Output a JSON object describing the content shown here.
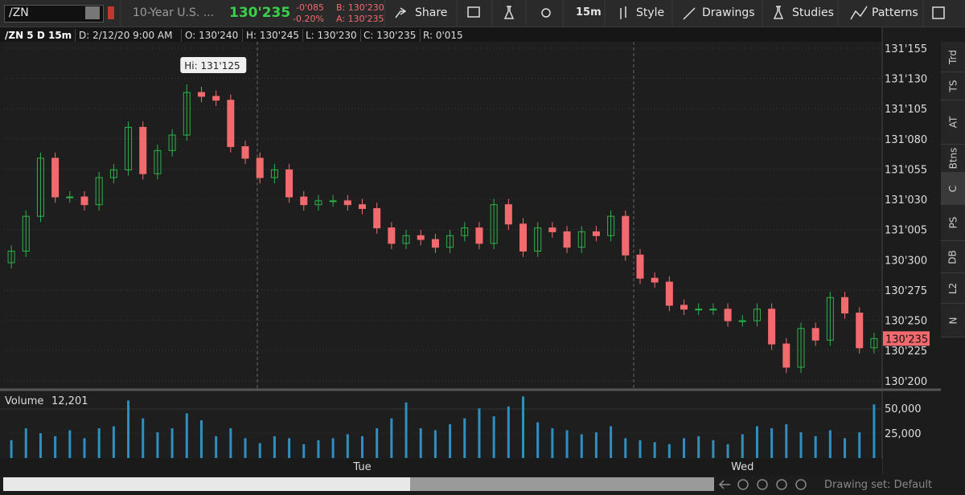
{
  "toolbar": {
    "symbol": "/ZN",
    "description": "10-Year U.S. ...",
    "last": "130'235",
    "net_change": "-0'085",
    "percent_change": "-0.20%",
    "bid": "B: 130'230",
    "ask": "A: 130'235",
    "share": "Share",
    "timeframe": "15m",
    "style": "Style",
    "drawings": "Drawings",
    "studies": "Studies",
    "patterns": "Patterns"
  },
  "info_bar": {
    "title": "/ZN 5 D 15m",
    "date": "D: 2/12/20 9:00 AM",
    "open": "O: 130'240",
    "high": "H: 130'245",
    "low": "L: 130'230",
    "close": "C: 130'235",
    "range": "R: 0'015"
  },
  "side_tabs": [
    "Trd",
    "TS",
    "AT",
    "Btns",
    "C",
    "PS",
    "DB",
    "L2",
    "N"
  ],
  "footer": {
    "drawing_set": "Drawing set: Default"
  },
  "chart_data": {
    "type": "candlestick",
    "categories": [
      null,
      null,
      null,
      null,
      null,
      null,
      null,
      null,
      null,
      null,
      null,
      null,
      null,
      null,
      null,
      null,
      null,
      null,
      null,
      null,
      null,
      null,
      null,
      null,
      "Tue",
      null,
      null,
      null,
      null,
      null,
      null,
      null,
      null,
      null,
      null,
      null,
      null,
      null,
      null,
      null,
      null,
      null,
      null,
      null,
      null,
      null,
      null,
      null,
      null,
      null,
      "Wed",
      null,
      null,
      null,
      null,
      null,
      null,
      null,
      null,
      null
    ],
    "open": [
      130.93,
      130.96,
      131.05,
      131.2,
      131.1,
      131.1,
      131.08,
      131.15,
      131.17,
      131.28,
      131.16,
      131.22,
      131.26,
      131.37,
      131.36,
      131.35,
      131.23,
      131.2,
      131.15,
      131.17,
      131.1,
      131.08,
      131.09,
      131.09,
      131.08,
      131.07,
      131.02,
      130.98,
      131,
      130.99,
      130.97,
      131,
      131.02,
      130.98,
      131.08,
      131.03,
      130.96,
      131.02,
      131.01,
      130.97,
      131.01,
      131,
      131.05,
      130.95,
      130.89,
      130.88,
      130.82,
      130.81,
      130.81,
      130.81,
      130.78,
      130.78,
      130.81,
      130.72,
      130.66,
      130.76,
      130.73,
      130.84,
      130.8,
      130.71
    ],
    "high": [
      130.975,
      131.065,
      131.215,
      131.215,
      131.115,
      131.115,
      131.165,
      131.185,
      131.295,
      131.295,
      131.235,
      131.275,
      131.391,
      131.385,
      131.375,
      131.365,
      131.245,
      131.215,
      131.185,
      131.185,
      131.115,
      131.105,
      131.105,
      131.105,
      131.095,
      131.085,
      131.035,
      131.015,
      131.015,
      131.005,
      131.015,
      131.035,
      131.035,
      131.095,
      131.095,
      131.045,
      131.035,
      131.035,
      131.025,
      131.025,
      131.025,
      131.065,
      131.065,
      130.965,
      130.905,
      130.895,
      130.835,
      130.825,
      130.825,
      130.825,
      130.795,
      130.825,
      130.825,
      130.735,
      130.775,
      130.775,
      130.855,
      130.855,
      130.815,
      130.749
    ],
    "low": [
      130.915,
      130.945,
      131.035,
      131.085,
      131.085,
      131.065,
      131.065,
      131.135,
      131.155,
      131.145,
      131.145,
      131.205,
      131.245,
      131.345,
      131.335,
      131.215,
      131.185,
      131.135,
      131.135,
      131.085,
      131.065,
      131.065,
      131.075,
      131.065,
      131.055,
      131.005,
      130.965,
      130.965,
      130.975,
      130.955,
      130.955,
      130.985,
      130.965,
      130.965,
      131.015,
      130.945,
      130.945,
      130.995,
      130.955,
      130.955,
      130.985,
      130.985,
      130.935,
      130.875,
      130.865,
      130.805,
      130.795,
      130.795,
      130.795,
      130.765,
      130.765,
      130.765,
      130.705,
      130.645,
      130.645,
      130.715,
      130.715,
      130.785,
      130.695,
      130.695
    ],
    "close": [
      130.96,
      131.05,
      131.2,
      131.1,
      131.1,
      131.08,
      131.15,
      131.17,
      131.28,
      131.16,
      131.22,
      131.26,
      131.37,
      131.36,
      131.35,
      131.23,
      131.2,
      131.15,
      131.17,
      131.1,
      131.08,
      131.09,
      131.09,
      131.08,
      131.07,
      131.02,
      130.98,
      131,
      130.99,
      130.97,
      131,
      131.02,
      130.98,
      131.08,
      131.03,
      130.96,
      131.02,
      131.01,
      130.97,
      131.01,
      131,
      131.05,
      130.95,
      130.89,
      130.88,
      130.82,
      130.81,
      130.81,
      130.81,
      130.78,
      130.78,
      130.81,
      130.72,
      130.66,
      130.76,
      130.73,
      130.84,
      130.8,
      130.71,
      130.734
    ],
    "up_color": "#2bb34a",
    "down_color": "#f26a6e",
    "ylim": [
      130.608,
      131.501
    ],
    "yticks": [
      {
        "value": 130.625,
        "label": "130'200"
      },
      {
        "value": 130.703125,
        "label": "130'225"
      },
      {
        "value": 130.78125,
        "label": "130'250"
      },
      {
        "value": 130.859375,
        "label": "130'275"
      },
      {
        "value": 130.9375,
        "label": "130'300"
      },
      {
        "value": 131.015625,
        "label": "131'005"
      },
      {
        "value": 131.09375,
        "label": "131'030"
      },
      {
        "value": 131.171875,
        "label": "131'055"
      },
      {
        "value": 131.25,
        "label": "131'080"
      },
      {
        "value": 131.328125,
        "label": "131'105"
      },
      {
        "value": 131.40625,
        "label": "131'130"
      },
      {
        "value": 131.484375,
        "label": "131'155"
      }
    ],
    "grid": true,
    "annotations": [
      "Hi: 131'125"
    ],
    "volume": {
      "label": "Volume",
      "value_label": "12,201",
      "color": "#2f8fc0",
      "values": [
        18000,
        30000,
        25000,
        22000,
        28000,
        20000,
        30000,
        32000,
        58000,
        40000,
        26000,
        30000,
        45000,
        38000,
        22000,
        30000,
        20000,
        15000,
        22000,
        20000,
        14000,
        18000,
        20000,
        24000,
        22000,
        30000,
        40000,
        56000,
        30000,
        28000,
        34000,
        40000,
        50000,
        42000,
        52000,
        62000,
        36000,
        30000,
        28000,
        24000,
        26000,
        32000,
        20000,
        18000,
        16000,
        14000,
        20000,
        22000,
        18000,
        14000,
        24000,
        32000,
        30000,
        34000,
        26000,
        22000,
        28000,
        20000,
        26000,
        54000
      ],
      "ylim": [
        0,
        68000
      ],
      "yticks": [
        {
          "value": 25000,
          "label": "25,000"
        },
        {
          "value": 50000,
          "label": "50,000"
        }
      ]
    }
  }
}
